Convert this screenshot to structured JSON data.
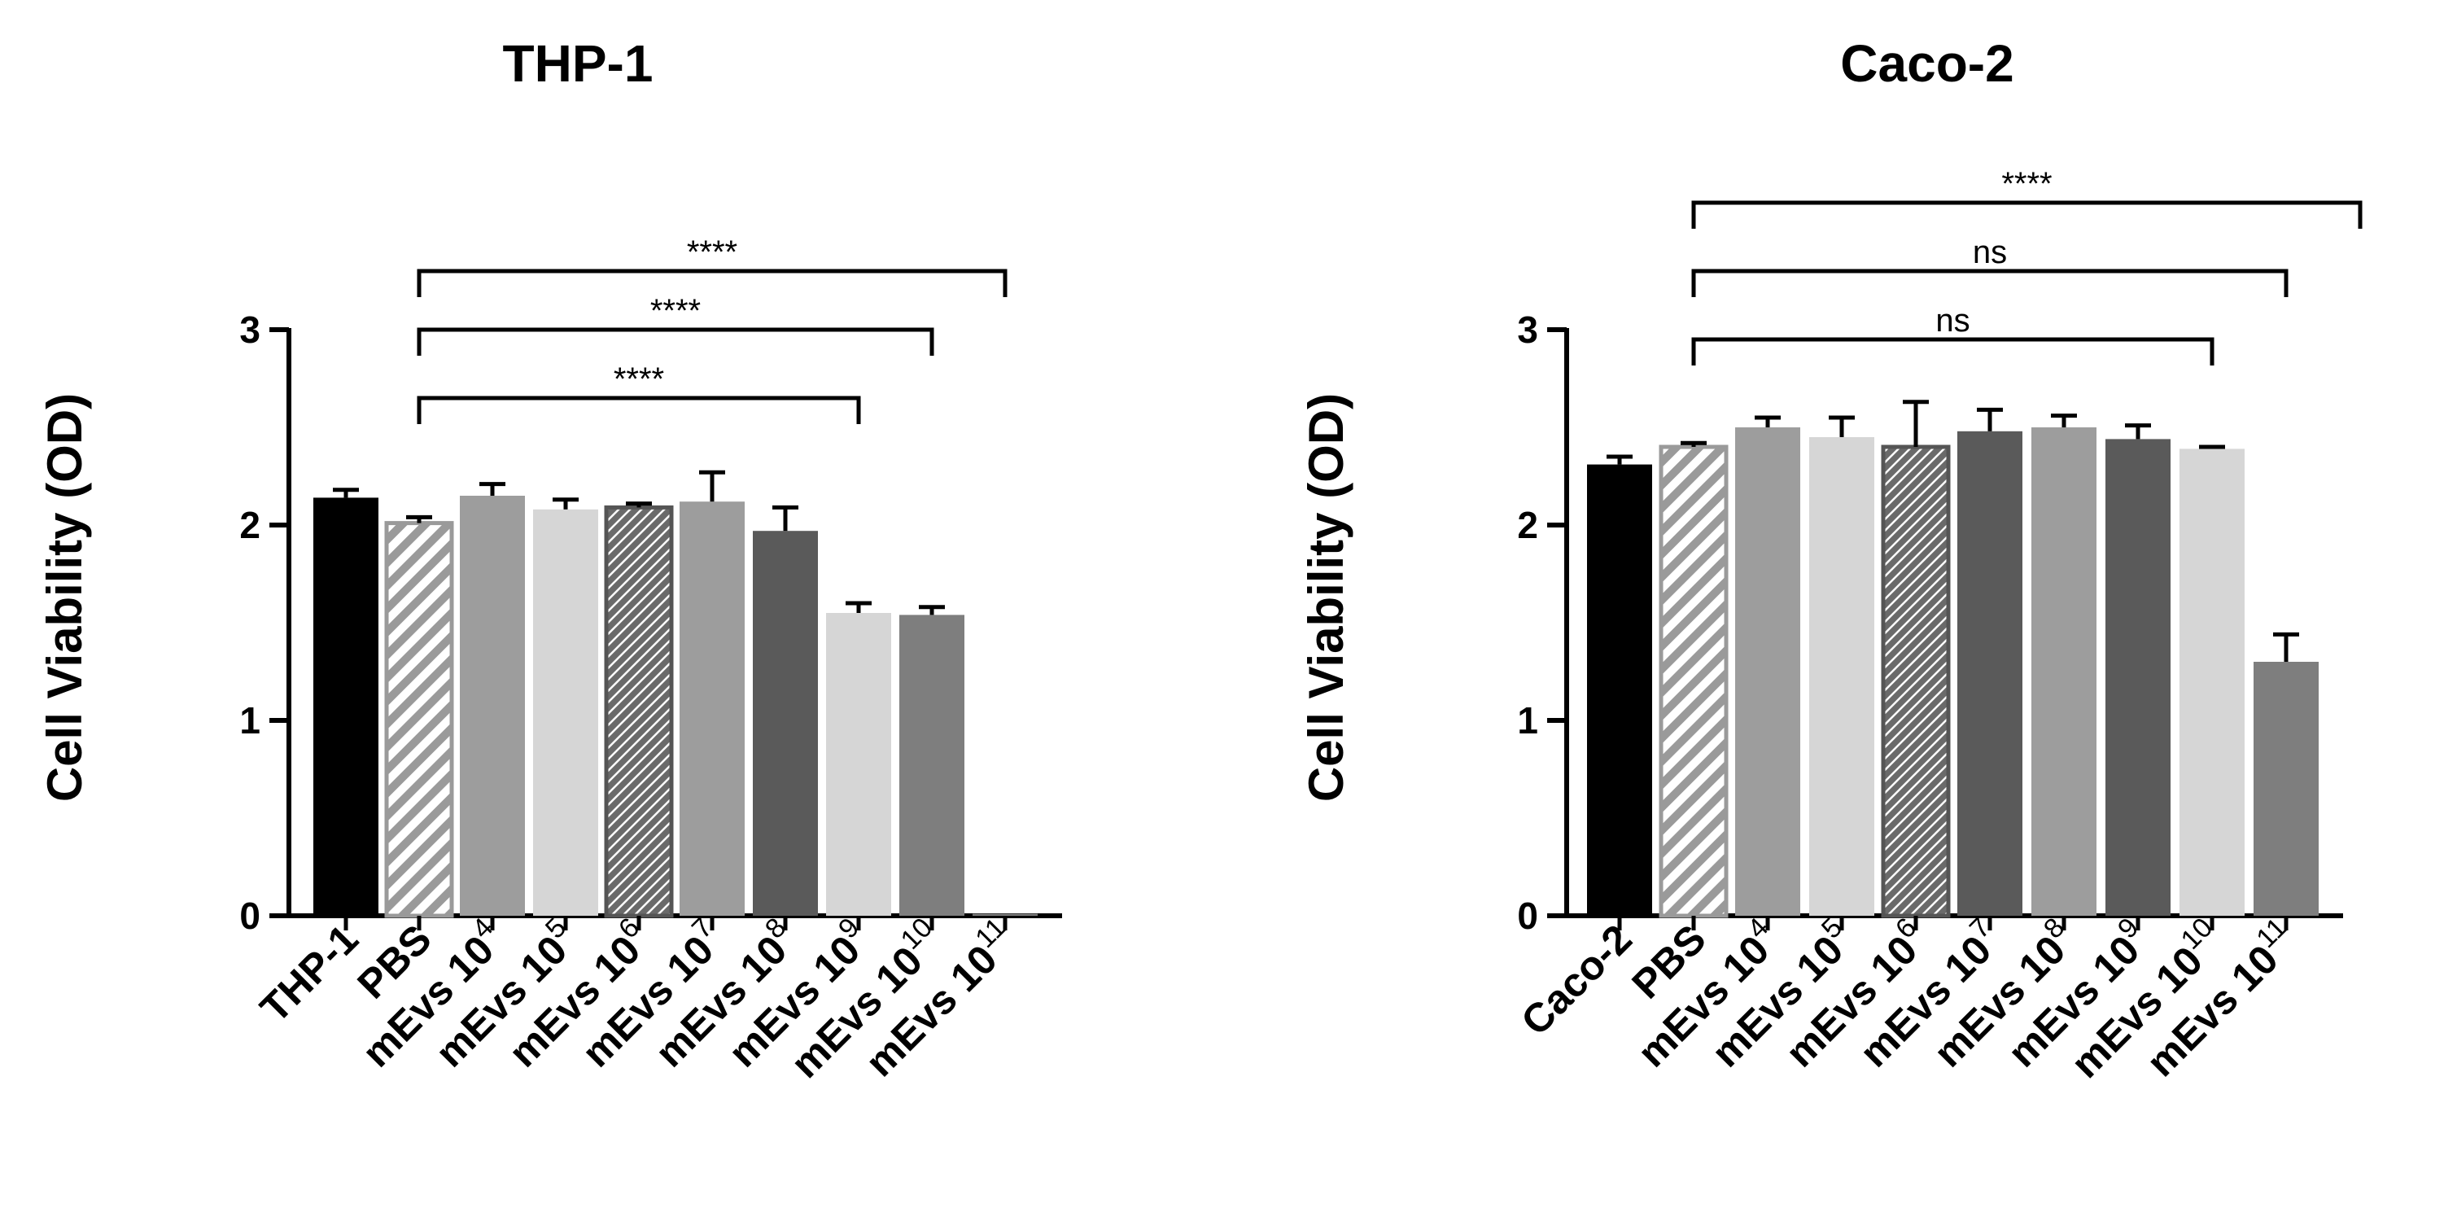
{
  "chart_data": [
    {
      "type": "bar",
      "title": "THP-1",
      "xlabel": "",
      "ylabel": "Cell Viability (OD)",
      "ylim": [
        0,
        3
      ],
      "yticks": [
        0,
        1,
        2,
        3
      ],
      "categories": [
        {
          "base": "THP-1",
          "sup": ""
        },
        {
          "base": "PBS",
          "sup": ""
        },
        {
          "base": "mEvs 10",
          "sup": "4"
        },
        {
          "base": "mEvs 10",
          "sup": "5"
        },
        {
          "base": "mEvs 10",
          "sup": "6"
        },
        {
          "base": "mEvs 10",
          "sup": "7"
        },
        {
          "base": "mEvs 10",
          "sup": "8"
        },
        {
          "base": "mEvs 10",
          "sup": "9"
        },
        {
          "base": "mEvs 10",
          "sup": "10"
        },
        {
          "base": "mEvs 10",
          "sup": "11"
        }
      ],
      "values": [
        2.14,
        2.01,
        2.15,
        2.08,
        2.09,
        2.12,
        1.97,
        1.55,
        1.54,
        0.01
      ],
      "errors": [
        0.04,
        0.03,
        0.06,
        0.05,
        0.02,
        0.15,
        0.12,
        0.05,
        0.04,
        0.0
      ],
      "fills": [
        "#000000",
        "hatch-light",
        "#9d9d9d",
        "#d6d6d6",
        "hatch-dark",
        "#9d9d9d",
        "#5a5a5a",
        "#d6d6d6",
        "#7e7e7e",
        "#7e7e7e"
      ],
      "significance": [
        {
          "from": 1,
          "to": 7,
          "label": "****",
          "y": 2.65
        },
        {
          "from": 1,
          "to": 8,
          "label": "****",
          "y": 3.0
        },
        {
          "from": 1,
          "to": 9,
          "label": "****",
          "y": 3.3
        }
      ]
    },
    {
      "type": "bar",
      "title": "Caco-2",
      "xlabel": "",
      "ylabel": "Cell Viability (OD)",
      "ylim": [
        0,
        3
      ],
      "yticks": [
        0,
        1,
        2,
        3
      ],
      "categories": [
        {
          "base": "Caco-2",
          "sup": ""
        },
        {
          "base": "PBS",
          "sup": ""
        },
        {
          "base": "mEvs 10",
          "sup": "4"
        },
        {
          "base": "mEvs 10",
          "sup": "5"
        },
        {
          "base": "mEvs 10",
          "sup": "6"
        },
        {
          "base": "mEvs 10",
          "sup": "7"
        },
        {
          "base": "mEvs 10",
          "sup": "8"
        },
        {
          "base": "mEvs 10",
          "sup": "9"
        },
        {
          "base": "mEvs 10",
          "sup": "10"
        },
        {
          "base": "mEvs 10",
          "sup": "11"
        }
      ],
      "values": [
        2.31,
        2.4,
        2.5,
        2.45,
        2.4,
        2.48,
        2.5,
        2.44,
        2.39,
        1.3
      ],
      "errors": [
        0.04,
        0.02,
        0.05,
        0.1,
        0.23,
        0.11,
        0.06,
        0.07,
        0.01,
        0.14
      ],
      "fills": [
        "#000000",
        "hatch-light",
        "#9d9d9d",
        "#d6d6d6",
        "hatch-dark",
        "#5a5a5a",
        "#9d9d9d",
        "#5a5a5a",
        "#d6d6d6",
        "#7e7e7e"
      ],
      "significance": [
        {
          "from": 1,
          "to": 8,
          "label": "ns",
          "y": 2.95
        },
        {
          "from": 1,
          "to": 9,
          "label": "ns",
          "y": 3.3
        },
        {
          "from": 1,
          "to": 10,
          "label": "****",
          "y": 3.65
        }
      ]
    }
  ]
}
